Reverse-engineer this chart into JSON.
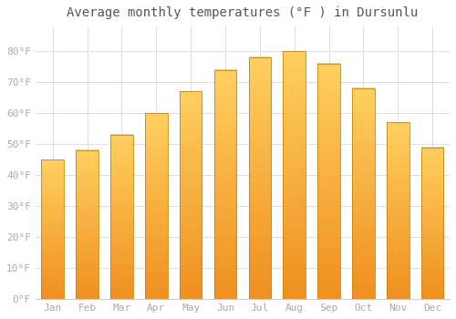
{
  "title": "Average monthly temperatures (°F ) in Dursunlu",
  "months": [
    "Jan",
    "Feb",
    "Mar",
    "Apr",
    "May",
    "Jun",
    "Jul",
    "Aug",
    "Sep",
    "Oct",
    "Nov",
    "Dec"
  ],
  "values": [
    45,
    48,
    53,
    60,
    67,
    74,
    78,
    80,
    76,
    68,
    57,
    49
  ],
  "bar_color_top": "#FFD040",
  "bar_color_bottom": "#F5A623",
  "bar_color_edge": "#C8860A",
  "background_color": "#FFFFFF",
  "grid_color": "#DDDDDD",
  "ylim": [
    0,
    88
  ],
  "yticks": [
    0,
    10,
    20,
    30,
    40,
    50,
    60,
    70,
    80
  ],
  "title_fontsize": 10,
  "tick_fontsize": 8,
  "tick_color": "#AAAAAA"
}
